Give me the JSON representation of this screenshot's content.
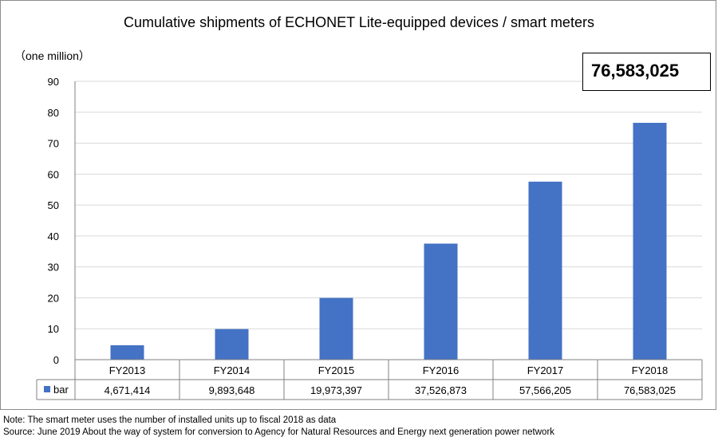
{
  "header": {
    "title": "Cumulative shipments of ECHONET Lite-equipped devices / smart meters",
    "unit_label": "（one million）",
    "callout_value": "76,583,025"
  },
  "footer": {
    "note": "Note: The smart meter uses the number of installed units up to fiscal 2018 as data",
    "source": "Source: June 2019 About the way of system for conversion to Agency for Natural Resources and Energy next generation power network"
  },
  "colors": {
    "bar": "#4472c4",
    "grid": "#d9d9d9",
    "axis": "#808080"
  },
  "chart_data": {
    "type": "bar",
    "title": "Cumulative shipments of ECHONET Lite-equipped devices / smart meters",
    "ylabel": "（one million）",
    "ylim": [
      0,
      90
    ],
    "yticks": [
      0,
      10,
      20,
      30,
      40,
      50,
      60,
      70,
      80,
      90
    ],
    "grid": true,
    "categories": [
      "FY2013",
      "FY2014",
      "FY2015",
      "FY2016",
      "FY2017",
      "FY2018"
    ],
    "series": [
      {
        "name": "bar",
        "values": [
          4.671414,
          9.893648,
          19.973397,
          37.526873,
          57.566205,
          76.583025
        ],
        "table_labels": [
          "4,671,414",
          "9,893,648",
          "19,973,397",
          "37,526,873",
          "57,566,205",
          "76,583,025"
        ]
      }
    ]
  }
}
